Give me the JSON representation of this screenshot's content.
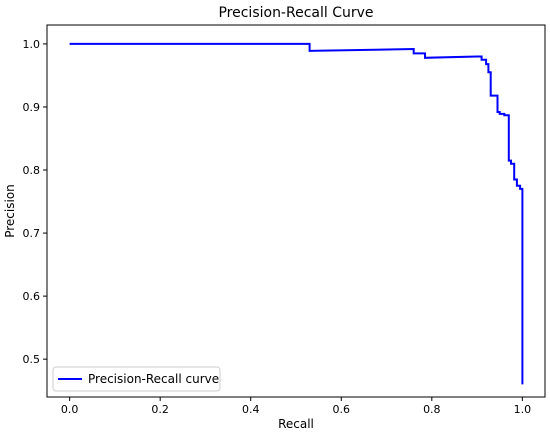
{
  "chart_data": {
    "type": "line",
    "title": "Precision-Recall Curve",
    "xlabel": "Recall",
    "ylabel": "Precision",
    "xlim": [
      -0.05,
      1.05
    ],
    "ylim": [
      0.44,
      1.03
    ],
    "x_ticks": [
      "0.0",
      "0.2",
      "0.4",
      "0.6",
      "0.8",
      "1.0"
    ],
    "y_ticks": [
      "0.5",
      "0.6",
      "0.7",
      "0.8",
      "0.9",
      "1.0"
    ],
    "grid": false,
    "legend_position": "lower-left",
    "series": [
      {
        "name": "Precision-Recall curve",
        "color": "#0000ff",
        "x": [
          0.0,
          0.53,
          0.53,
          0.76,
          0.76,
          0.785,
          0.785,
          0.9,
          0.91,
          0.91,
          0.92,
          0.92,
          0.925,
          0.925,
          0.93,
          0.93,
          0.945,
          0.945,
          0.95,
          0.95,
          0.96,
          0.96,
          0.97,
          0.97,
          0.975,
          0.975,
          0.982,
          0.982,
          0.988,
          0.988,
          0.995,
          0.995,
          1.0,
          1.0
        ],
        "y": [
          1.0,
          1.0,
          0.989,
          0.992,
          0.985,
          0.985,
          0.978,
          0.98,
          0.98,
          0.975,
          0.975,
          0.968,
          0.968,
          0.955,
          0.955,
          0.918,
          0.918,
          0.892,
          0.892,
          0.889,
          0.889,
          0.887,
          0.887,
          0.815,
          0.815,
          0.81,
          0.81,
          0.785,
          0.785,
          0.775,
          0.775,
          0.77,
          0.77,
          0.46
        ]
      }
    ]
  }
}
